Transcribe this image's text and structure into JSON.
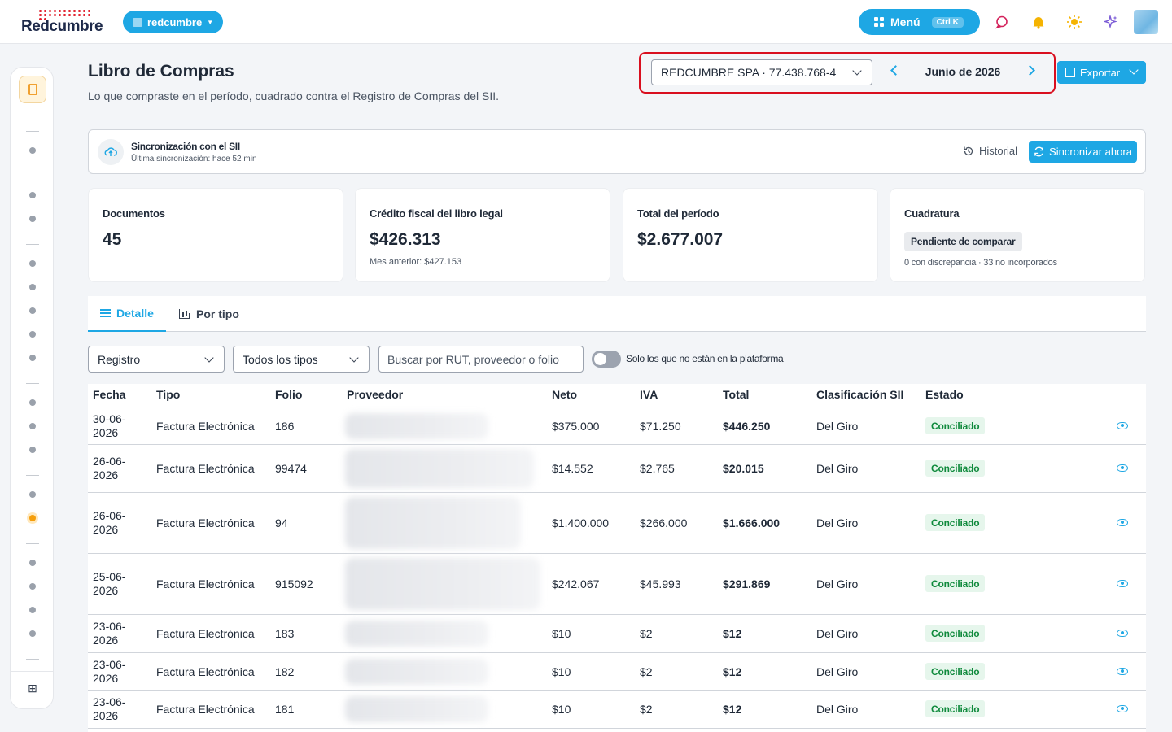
{
  "topbar": {
    "logo_text": "Redcumbre",
    "org_name": "redcumbre",
    "menu_label": "Menú",
    "menu_shortcut": "Ctrl K",
    "icons": [
      "chat-icon",
      "bell-icon",
      "sun-icon",
      "sparkle-icon"
    ]
  },
  "header": {
    "title": "Libro de Compras",
    "subtitle": "Lo que compraste en el período, cuadrado contra el Registro de Compras del SII.",
    "company": "REDCUMBRE SPA · 77.438.768-4",
    "period": "Junio de 2026",
    "export_label": "Exportar"
  },
  "sync": {
    "title": "Sincronización con el SII",
    "subtitle": "Última sincronización: hace 52 min",
    "history_label": "Historial",
    "sync_label": "Sincronizar ahora"
  },
  "cards": [
    {
      "label": "Documentos",
      "value": "45"
    },
    {
      "label": "Crédito fiscal del libro legal",
      "value": "$426.313",
      "note": "Mes anterior: $427.153"
    },
    {
      "label": "Total del período",
      "value": "$2.677.007"
    },
    {
      "label": "Cuadratura",
      "badge": "Pendiente de comparar",
      "note": "0 con discrepancia · 33 no incorporados"
    }
  ],
  "tabs": [
    {
      "label": "Detalle",
      "active": true
    },
    {
      "label": "Por tipo",
      "active": false
    }
  ],
  "filters": {
    "source": "Registro",
    "type": "Todos los tipos",
    "search_placeholder": "Buscar por RUT, proveedor o folio",
    "toggle_label": "Solo los que no están en la plataforma"
  },
  "table": {
    "columns": [
      "Fecha",
      "Tipo",
      "Folio",
      "Proveedor",
      "Neto",
      "IVA",
      "Total",
      "Clasificación SII",
      "Estado"
    ],
    "rows": [
      {
        "date_line1": "30-06-",
        "date_line2": "2026",
        "type": "Factura Electrónica",
        "folio": "186",
        "net": "$375.000",
        "iva": "$71.250",
        "total": "$446.250",
        "class": "Del Giro",
        "status": "Conciliado"
      },
      {
        "date_line1": "26-06-",
        "date_line2": "2026",
        "type": "Factura Electrónica",
        "folio": "99474",
        "net": "$14.552",
        "iva": "$2.765",
        "total": "$20.015",
        "class": "Del Giro",
        "status": "Conciliado"
      },
      {
        "date_line1": "26-06-",
        "date_line2": "2026",
        "type": "Factura Electrónica",
        "folio": "94",
        "net": "$1.400.000",
        "iva": "$266.000",
        "total": "$1.666.000",
        "class": "Del Giro",
        "status": "Conciliado"
      },
      {
        "date_line1": "25-06-",
        "date_line2": "2026",
        "type": "Factura Electrónica",
        "folio": "915092",
        "net": "$242.067",
        "iva": "$45.993",
        "total": "$291.869",
        "class": "Del Giro",
        "status": "Conciliado"
      },
      {
        "date_line1": "23-06-",
        "date_line2": "2026",
        "type": "Factura Electrónica",
        "folio": "183",
        "net": "$10",
        "iva": "$2",
        "total": "$12",
        "class": "Del Giro",
        "status": "Conciliado"
      },
      {
        "date_line1": "23-06-",
        "date_line2": "2026",
        "type": "Factura Electrónica",
        "folio": "182",
        "net": "$10",
        "iva": "$2",
        "total": "$12",
        "class": "Del Giro",
        "status": "Conciliado"
      },
      {
        "date_line1": "23-06-",
        "date_line2": "2026",
        "type": "Factura Electrónica",
        "folio": "181",
        "net": "$10",
        "iva": "$2",
        "total": "$12",
        "class": "Del Giro",
        "status": "Conciliado"
      }
    ]
  },
  "colors": {
    "accent": "#1ea7e4",
    "brand_red": "#e11d2a",
    "success": "#0f8a3c",
    "highlight": "#d90f1f"
  }
}
